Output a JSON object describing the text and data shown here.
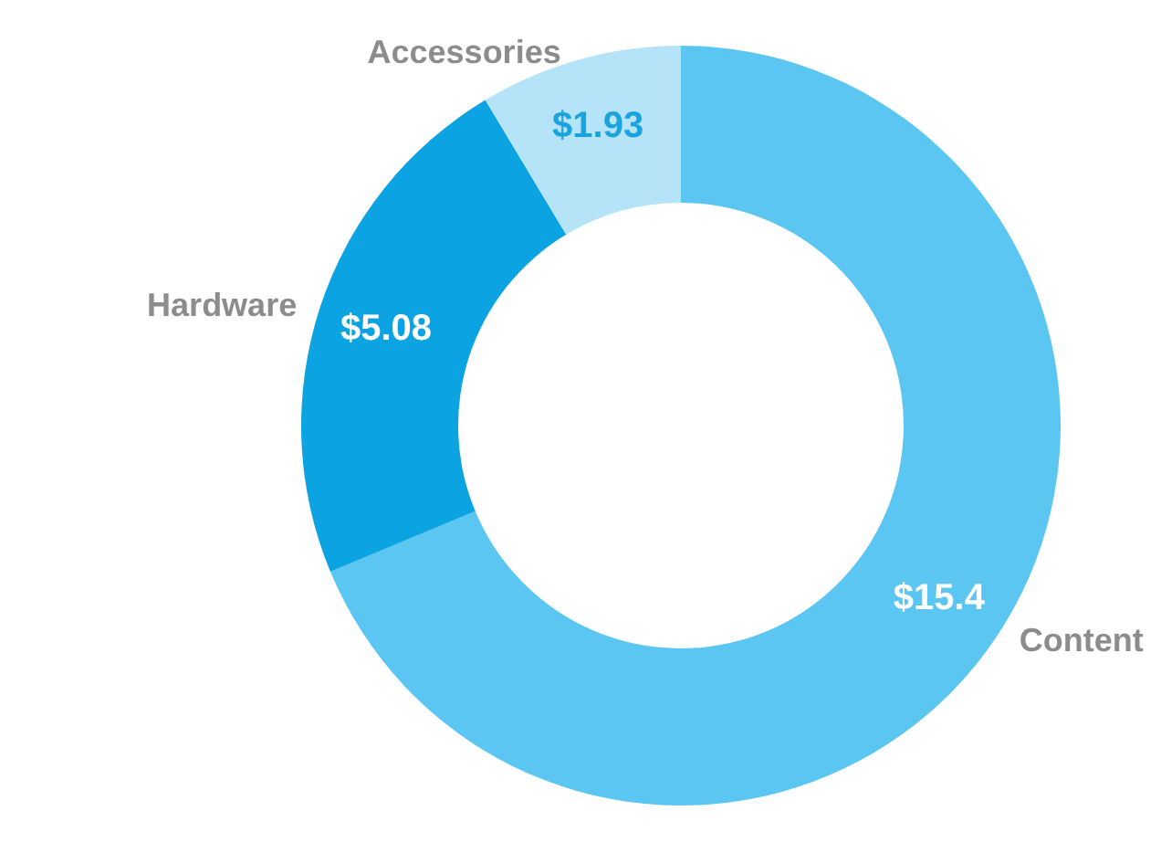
{
  "chart_data": {
    "type": "donut",
    "categories": [
      "Content",
      "Hardware",
      "Accessories"
    ],
    "values": [
      15.4,
      5.08,
      1.93
    ],
    "colors": [
      "#5cc6f2",
      "#0ba3e1",
      "#b5e4f9"
    ],
    "value_labels": [
      "$15.4",
      "$5.08",
      "$1.93"
    ],
    "legend": false
  }
}
